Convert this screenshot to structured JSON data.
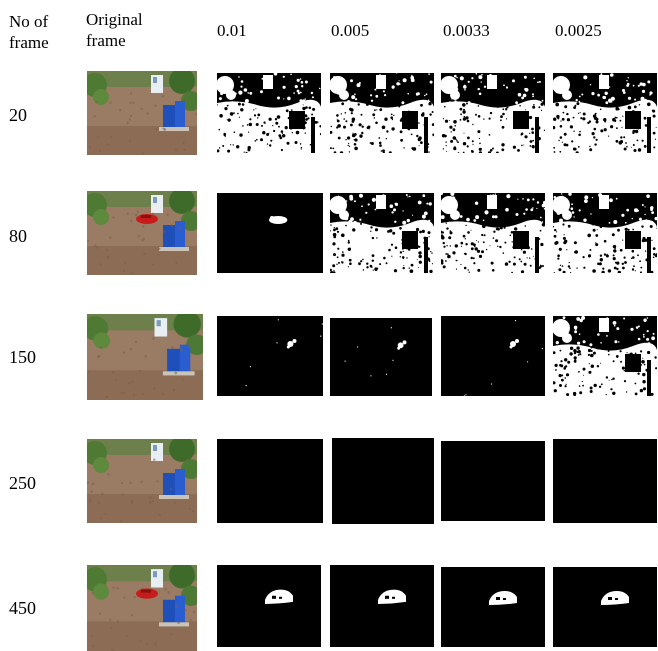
{
  "figure": {
    "headers": {
      "frame_col": "No of\nframe",
      "original_col": "Original\nframe",
      "params": [
        "0.01",
        "0.005",
        "0.0033",
        "0.0025"
      ]
    },
    "rows": [
      {
        "frame": "20",
        "car": false,
        "masks": [
          "dense",
          "dense",
          "dense",
          "dense"
        ]
      },
      {
        "frame": "80",
        "car": true,
        "masks": [
          "blob",
          "dense",
          "dense",
          "dense"
        ]
      },
      {
        "frame": "150",
        "car": false,
        "masks": [
          "blob-small",
          "blob-small",
          "blob-small",
          "dense"
        ]
      },
      {
        "frame": "250",
        "car": false,
        "masks": [
          "empty",
          "empty",
          "empty",
          "empty"
        ]
      },
      {
        "frame": "450",
        "car": true,
        "masks": [
          "car-blob",
          "car-blob",
          "car-blob",
          "car-blob"
        ]
      }
    ]
  }
}
